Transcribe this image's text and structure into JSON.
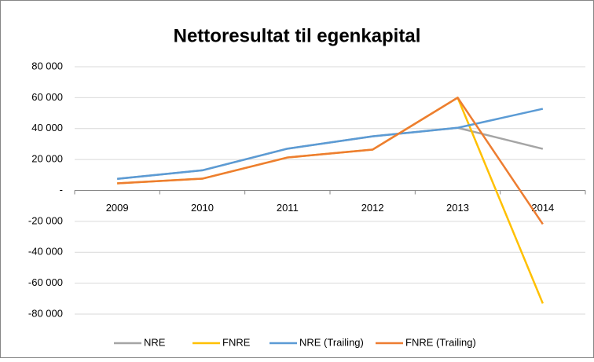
{
  "chart_data": {
    "type": "line",
    "title": "Nettoresultat til egenkapital",
    "categories": [
      "2009",
      "2010",
      "2011",
      "2012",
      "2013",
      "2014"
    ],
    "series": [
      {
        "name": "NRE",
        "color": "#a5a5a5",
        "values": [
          7500,
          13000,
          27000,
          35000,
          40500,
          26900
        ]
      },
      {
        "name": "FNRE",
        "color": "#ffc000",
        "values": [
          4600,
          7600,
          21300,
          26400,
          60000,
          -73100
        ]
      },
      {
        "name": "NRE (Trailing)",
        "color": "#5b9bd5",
        "values": [
          7500,
          13000,
          27000,
          35000,
          40500,
          52800
        ]
      },
      {
        "name": "FNRE (Trailing)",
        "color": "#ed7d31",
        "values": [
          4600,
          7600,
          21300,
          26400,
          60000,
          -21800
        ]
      }
    ],
    "ylim": [
      -80000,
      80000
    ],
    "yticks": [
      {
        "value": 80000,
        "label": "80 000"
      },
      {
        "value": 60000,
        "label": "60 000"
      },
      {
        "value": 40000,
        "label": "40 000"
      },
      {
        "value": 20000,
        "label": "20 000"
      },
      {
        "value": 0,
        "label": "-"
      },
      {
        "value": -20000,
        "label": "-20 000"
      },
      {
        "value": -40000,
        "label": "-40 000"
      },
      {
        "value": -60000,
        "label": "-60 000"
      },
      {
        "value": -80000,
        "label": "-80 000"
      }
    ],
    "grid": true,
    "legend": "bottom"
  }
}
